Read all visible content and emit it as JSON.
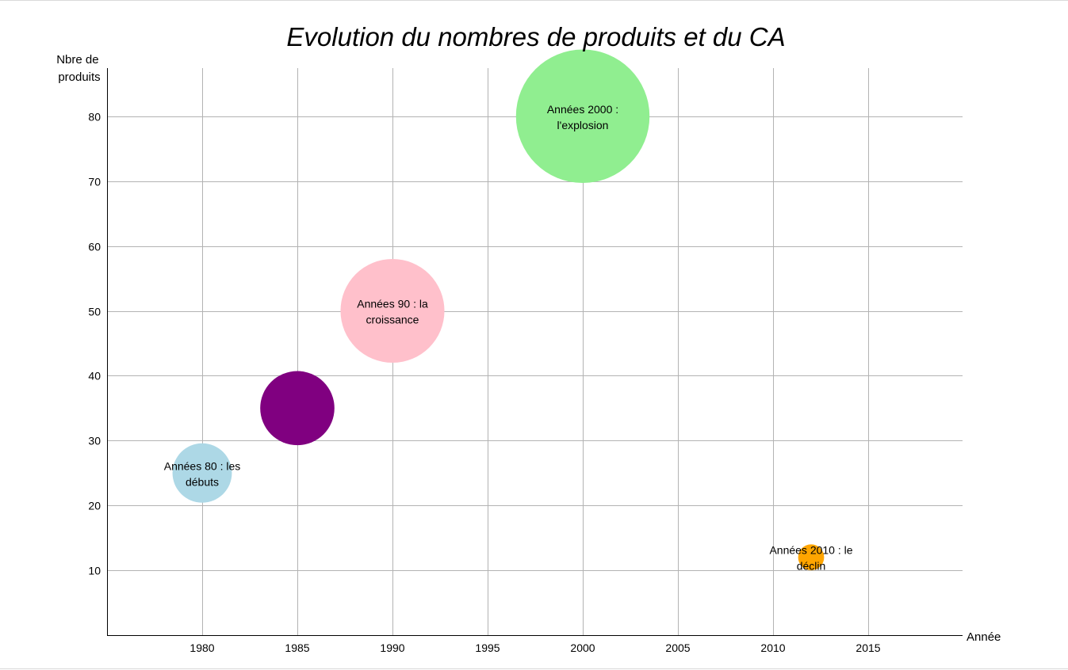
{
  "chart_data": {
    "type": "bubble",
    "title": "Evolution du nombres de produits et du CA",
    "xlabel": "Année",
    "ylabel_lines": [
      "Nbre de",
      "produits"
    ],
    "xlim": [
      1975,
      2020
    ],
    "ylim": [
      0,
      87
    ],
    "x_ticks": [
      1980,
      1985,
      1990,
      1995,
      2000,
      2005,
      2010,
      2015
    ],
    "y_ticks": [
      10,
      20,
      30,
      40,
      50,
      60,
      70,
      80
    ],
    "grid": true,
    "legend": "none",
    "points": [
      {
        "x": 1980,
        "y": 25,
        "size": 16,
        "color": "#add8e6",
        "label_lines": [
          "Années 80 : les",
          "débuts"
        ]
      },
      {
        "x": 1985,
        "y": 35,
        "size": 20,
        "color": "#800080",
        "label_lines": []
      },
      {
        "x": 1990,
        "y": 50,
        "size": 28,
        "color": "#ffc0cb",
        "label_lines": [
          "Années 90 : la",
          "croissance"
        ]
      },
      {
        "x": 2000,
        "y": 80,
        "size": 36,
        "color": "#90ee90",
        "label_lines": [
          "Années 2000 :",
          "l'explosion"
        ]
      },
      {
        "x": 2012,
        "y": 12,
        "size": 7,
        "color": "#ffa500",
        "label_lines": [
          "Années 2010 : le",
          "déclin"
        ]
      }
    ]
  }
}
